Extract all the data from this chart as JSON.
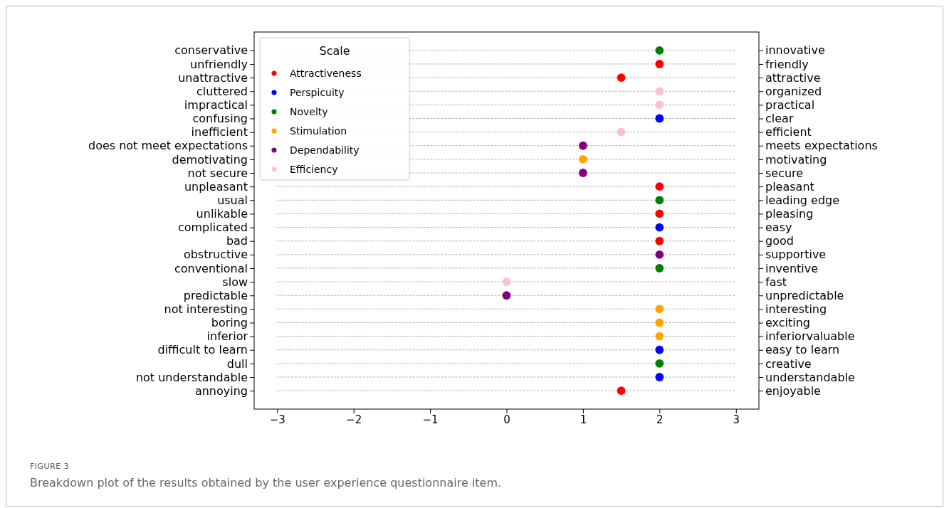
{
  "chart_data": {
    "type": "scatter",
    "orientation": "horizontal",
    "categories": [
      "conservative",
      "unfriendly",
      "unattractive",
      "cluttered",
      "impractical",
      "confusing",
      "inefficient",
      "does not meet expectations",
      "demotivating",
      "not secure",
      "unpleasant",
      "usual",
      "unlikable",
      "complicated",
      "bad",
      "obstructive",
      "conventional",
      "slow",
      "predictable",
      "not interesting",
      "boring",
      "inferior",
      "difficult to learn",
      "dull",
      "not understandable",
      "annoying"
    ],
    "y2_categories": [
      "innovative",
      "friendly",
      "attractive",
      "organized",
      "practical",
      "clear",
      "efficient",
      "meets expectations",
      "motivating",
      "secure",
      "pleasant",
      "leading edge",
      "pleasing",
      "easy",
      "good",
      "supportive",
      "inventive",
      "fast",
      "unpredictable",
      "interesting",
      "exciting",
      "inferiorvaluable",
      "easy to learn",
      "creative",
      "understandable",
      "enjoyable"
    ],
    "series": [
      {
        "name": "Attractiveness",
        "color": "#ff0000",
        "values": [
          null,
          2,
          1.5,
          null,
          null,
          null,
          null,
          null,
          null,
          null,
          2,
          null,
          2,
          null,
          2,
          null,
          null,
          null,
          null,
          null,
          null,
          null,
          null,
          null,
          null,
          1.5
        ]
      },
      {
        "name": "Perspicuity",
        "color": "#0000ff",
        "values": [
          null,
          null,
          null,
          null,
          null,
          2,
          null,
          null,
          null,
          null,
          null,
          null,
          null,
          2,
          null,
          null,
          null,
          null,
          null,
          null,
          null,
          null,
          2,
          null,
          2,
          null
        ]
      },
      {
        "name": "Novelty",
        "color": "#008000",
        "values": [
          2,
          null,
          null,
          null,
          null,
          null,
          null,
          null,
          null,
          null,
          null,
          2,
          null,
          null,
          null,
          null,
          2,
          null,
          null,
          null,
          null,
          null,
          null,
          2,
          null,
          null
        ]
      },
      {
        "name": "Stimulation",
        "color": "#ffa500",
        "values": [
          null,
          null,
          null,
          null,
          null,
          null,
          null,
          null,
          1,
          null,
          null,
          null,
          null,
          null,
          null,
          null,
          null,
          null,
          null,
          2,
          2,
          2,
          null,
          null,
          null,
          null
        ]
      },
      {
        "name": "Dependability",
        "color": "#800080",
        "values": [
          null,
          null,
          null,
          null,
          null,
          null,
          null,
          1,
          null,
          1,
          null,
          null,
          null,
          null,
          null,
          2,
          null,
          null,
          0,
          null,
          null,
          null,
          null,
          null,
          null,
          null
        ]
      },
      {
        "name": "Efficiency",
        "color": "#ffc0cb",
        "values": [
          null,
          null,
          null,
          2,
          2,
          null,
          1.5,
          null,
          null,
          null,
          null,
          null,
          null,
          null,
          null,
          null,
          null,
          0,
          null,
          null,
          null,
          null,
          null,
          null,
          null,
          null
        ]
      }
    ],
    "xlim": [
      -3.3,
      3.3
    ],
    "xticks": [
      {
        "value": -3,
        "label": "−3"
      },
      {
        "value": -2,
        "label": "−2"
      },
      {
        "value": -1,
        "label": "−1"
      },
      0,
      1,
      2,
      3
    ],
    "grid": "y",
    "legend": "top left",
    "legend_title": "Scale",
    "marker": "circle",
    "annotations": [
      "FIGURE 3",
      "Breakdown plot of the results obtained by the user experience questionnaire item."
    ]
  }
}
